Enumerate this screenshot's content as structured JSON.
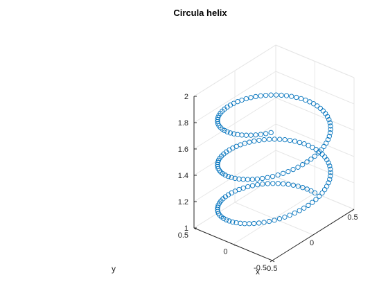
{
  "chart_data": {
    "type": "scatter3d",
    "title": "Circula helix",
    "xlabel": "x",
    "ylabel": "y",
    "zlabel": "",
    "xlim": [
      -0.5,
      0.5
    ],
    "ylim": [
      -0.5,
      0.5
    ],
    "zlim": [
      1,
      2
    ],
    "x_ticks": [
      "-0.5",
      "0",
      "0.5"
    ],
    "y_ticks": [
      "-0.5",
      "0",
      "0.5"
    ],
    "z_ticks": [
      "1",
      "1.2",
      "1.4",
      "1.6",
      "1.8",
      "2"
    ],
    "grid": true,
    "marker": "open-circle",
    "series_color": "#0072BD",
    "helix": {
      "radius": 0.5,
      "z_start": 1.0,
      "z_end": 1.88,
      "turns": 2.62,
      "points": 180
    }
  }
}
